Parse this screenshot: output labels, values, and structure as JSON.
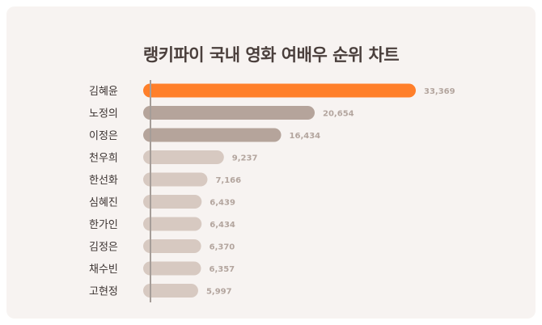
{
  "chart_data": {
    "type": "bar",
    "orientation": "horizontal",
    "title": "랭키파이 국내 영화 여배우 순위 차트",
    "categories": [
      "김혜윤",
      "노정의",
      "이정은",
      "천우희",
      "한선화",
      "심혜진",
      "한가인",
      "김정은",
      "채수빈",
      "고현정"
    ],
    "values": [
      33369,
      20654,
      16434,
      9237,
      7166,
      6439,
      6434,
      6370,
      6357,
      5997
    ],
    "value_labels": [
      "33,369",
      "20,654",
      "16,434",
      "9,237",
      "7,166",
      "6,439",
      "6,434",
      "6,370",
      "6,357",
      "5,997"
    ],
    "xlim": [
      0,
      33369
    ],
    "grid": false,
    "legend": "none",
    "colors": {
      "highlight": "#ff7f2a",
      "highlight_label": "#e8772a",
      "mid": "#b5a49b",
      "light": "#d7c9c1",
      "value_label": "#b3a59e",
      "axis": "#a59d98"
    }
  }
}
